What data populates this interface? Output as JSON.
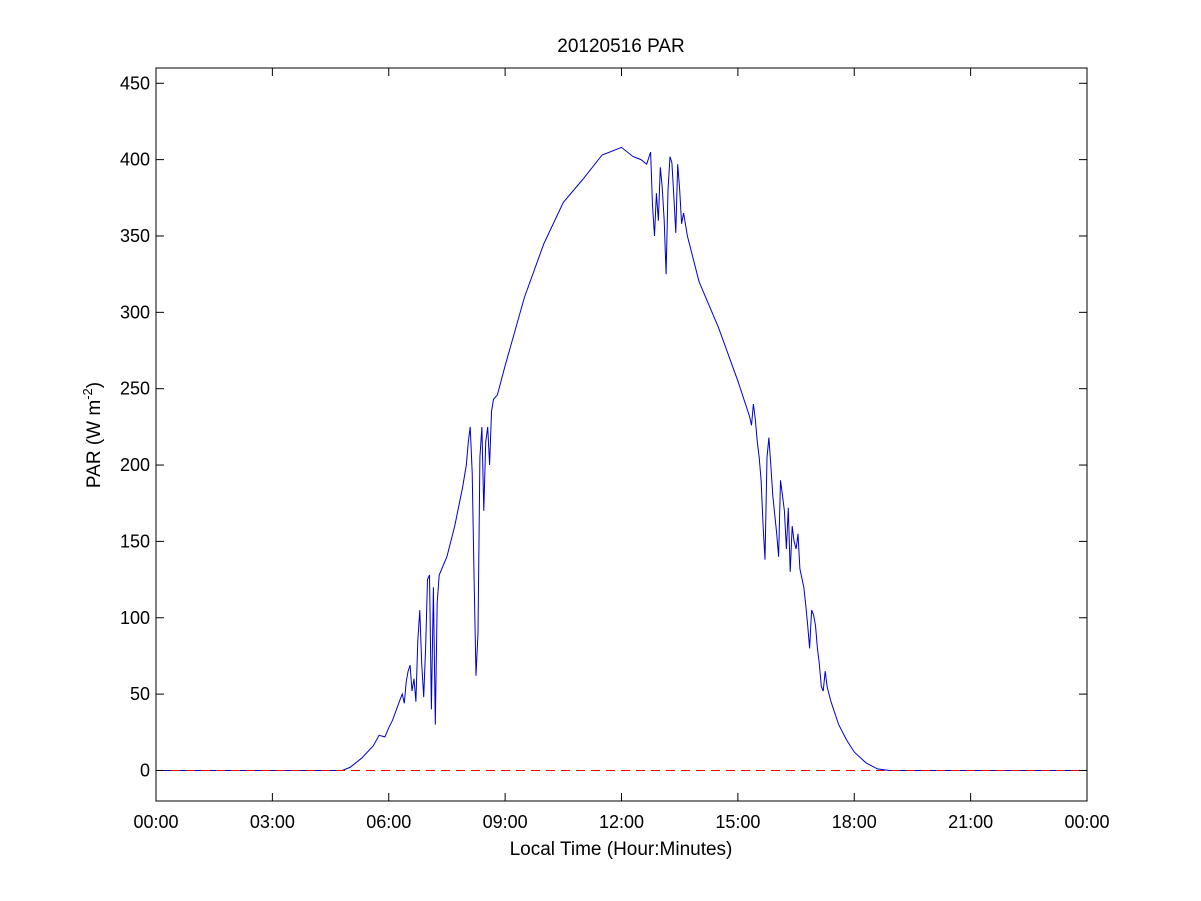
{
  "chart_data": {
    "type": "line",
    "title": "20120516 PAR",
    "xlabel": "Local Time (Hour:Minutes)",
    "ylabel": {
      "prefix": "PAR (W m",
      "superscript": "-2",
      "suffix": ")"
    },
    "xlim": [
      0,
      24
    ],
    "ylim": [
      -20,
      460
    ],
    "x_ticks": [
      0,
      3,
      6,
      9,
      12,
      15,
      18,
      21,
      24
    ],
    "x_tick_labels": [
      "00:00",
      "03:00",
      "06:00",
      "09:00",
      "12:00",
      "15:00",
      "18:00",
      "21:00",
      "00:00"
    ],
    "y_ticks": [
      0,
      50,
      100,
      150,
      200,
      250,
      300,
      350,
      400,
      450
    ],
    "y_tick_labels": [
      "0",
      "50",
      "100",
      "150",
      "200",
      "250",
      "300",
      "350",
      "400",
      "450"
    ],
    "grid": false,
    "legend": "none",
    "series": [
      {
        "color": "#0000cc",
        "style": "solid",
        "x_unit": "hours",
        "points": [
          [
            0,
            0
          ],
          [
            4.8,
            0
          ],
          [
            5.0,
            2
          ],
          [
            5.3,
            8
          ],
          [
            5.6,
            16
          ],
          [
            5.75,
            23
          ],
          [
            5.9,
            22
          ],
          [
            6.0,
            28
          ],
          [
            6.1,
            33
          ],
          [
            6.2,
            40
          ],
          [
            6.3,
            47
          ],
          [
            6.35,
            50
          ],
          [
            6.4,
            44
          ],
          [
            6.45,
            58
          ],
          [
            6.5,
            65
          ],
          [
            6.55,
            69
          ],
          [
            6.6,
            52
          ],
          [
            6.65,
            60
          ],
          [
            6.7,
            45
          ],
          [
            6.75,
            85
          ],
          [
            6.8,
            105
          ],
          [
            6.85,
            70
          ],
          [
            6.9,
            48
          ],
          [
            6.95,
            80
          ],
          [
            7.0,
            125
          ],
          [
            7.05,
            128
          ],
          [
            7.1,
            40
          ],
          [
            7.15,
            120
          ],
          [
            7.2,
            30
          ],
          [
            7.25,
            110
          ],
          [
            7.3,
            128
          ],
          [
            7.5,
            140
          ],
          [
            7.7,
            160
          ],
          [
            7.9,
            185
          ],
          [
            8.0,
            200
          ],
          [
            8.05,
            215
          ],
          [
            8.1,
            225
          ],
          [
            8.15,
            195
          ],
          [
            8.2,
            125
          ],
          [
            8.25,
            62
          ],
          [
            8.3,
            90
          ],
          [
            8.35,
            205
          ],
          [
            8.4,
            225
          ],
          [
            8.45,
            170
          ],
          [
            8.5,
            215
          ],
          [
            8.55,
            225
          ],
          [
            8.6,
            200
          ],
          [
            8.65,
            235
          ],
          [
            8.7,
            243
          ],
          [
            8.8,
            246
          ],
          [
            9.0,
            265
          ],
          [
            9.5,
            310
          ],
          [
            10.0,
            345
          ],
          [
            10.5,
            372
          ],
          [
            11.0,
            387
          ],
          [
            11.5,
            403
          ],
          [
            12.0,
            408
          ],
          [
            12.3,
            402
          ],
          [
            12.5,
            400
          ],
          [
            12.65,
            397
          ],
          [
            12.75,
            405
          ],
          [
            12.8,
            370
          ],
          [
            12.85,
            350
          ],
          [
            12.9,
            378
          ],
          [
            12.95,
            360
          ],
          [
            13.0,
            395
          ],
          [
            13.05,
            382
          ],
          [
            13.1,
            360
          ],
          [
            13.15,
            325
          ],
          [
            13.2,
            380
          ],
          [
            13.25,
            402
          ],
          [
            13.3,
            398
          ],
          [
            13.35,
            375
          ],
          [
            13.4,
            352
          ],
          [
            13.45,
            397
          ],
          [
            13.5,
            380
          ],
          [
            13.55,
            358
          ],
          [
            13.6,
            365
          ],
          [
            13.7,
            350
          ],
          [
            14.0,
            320
          ],
          [
            14.5,
            290
          ],
          [
            15.0,
            255
          ],
          [
            15.3,
            232
          ],
          [
            15.35,
            226
          ],
          [
            15.4,
            240
          ],
          [
            15.45,
            230
          ],
          [
            15.5,
            215
          ],
          [
            15.55,
            205
          ],
          [
            15.6,
            190
          ],
          [
            15.65,
            160
          ],
          [
            15.7,
            138
          ],
          [
            15.75,
            205
          ],
          [
            15.8,
            218
          ],
          [
            15.85,
            200
          ],
          [
            15.9,
            180
          ],
          [
            16.0,
            155
          ],
          [
            16.05,
            140
          ],
          [
            16.1,
            190
          ],
          [
            16.15,
            180
          ],
          [
            16.2,
            170
          ],
          [
            16.25,
            145
          ],
          [
            16.3,
            172
          ],
          [
            16.35,
            130
          ],
          [
            16.4,
            160
          ],
          [
            16.45,
            150
          ],
          [
            16.5,
            145
          ],
          [
            16.55,
            155
          ],
          [
            16.6,
            132
          ],
          [
            16.7,
            120
          ],
          [
            16.75,
            108
          ],
          [
            16.8,
            95
          ],
          [
            16.85,
            80
          ],
          [
            16.9,
            105
          ],
          [
            16.95,
            102
          ],
          [
            17.0,
            95
          ],
          [
            17.05,
            80
          ],
          [
            17.1,
            70
          ],
          [
            17.15,
            55
          ],
          [
            17.2,
            52
          ],
          [
            17.25,
            65
          ],
          [
            17.3,
            55
          ],
          [
            17.35,
            50
          ],
          [
            17.4,
            45
          ],
          [
            17.6,
            30
          ],
          [
            17.8,
            20
          ],
          [
            18.0,
            12
          ],
          [
            18.3,
            5
          ],
          [
            18.6,
            1
          ],
          [
            18.9,
            0
          ],
          [
            24,
            0
          ]
        ]
      },
      {
        "color": "#ff0000",
        "style": "dashed",
        "x_unit": "hours",
        "points": [
          [
            0,
            0
          ],
          [
            24,
            0
          ]
        ]
      }
    ]
  }
}
